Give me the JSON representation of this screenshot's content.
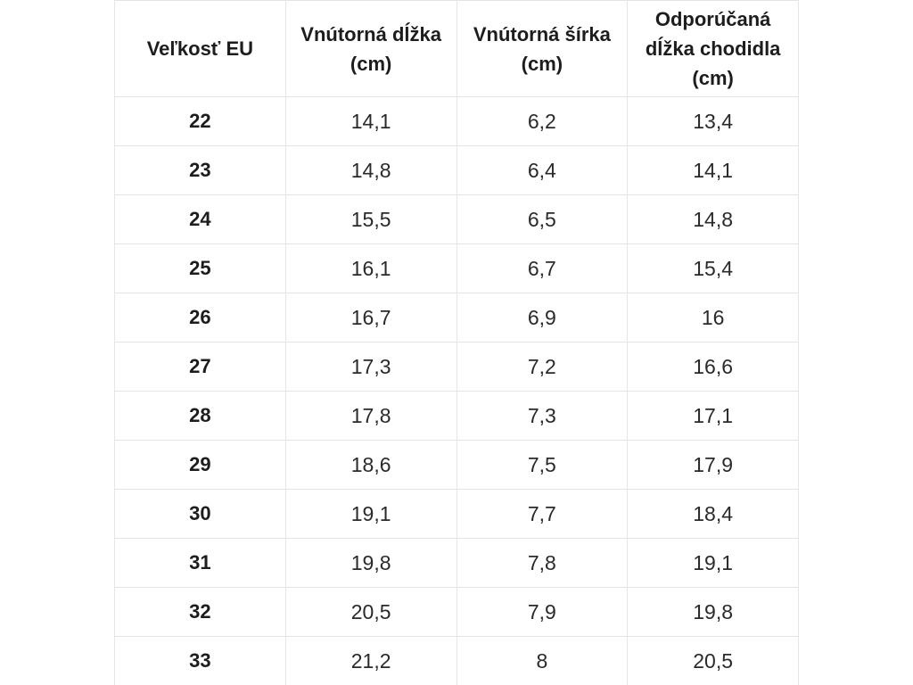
{
  "chart_data": {
    "type": "table",
    "columns": [
      "Veľkosť EU",
      "Vnútorná dĺžka (cm)",
      "Vnútorná šírka (cm)",
      "Odporúčaná dĺžka chodidla (cm)"
    ],
    "rows": [
      [
        "22",
        "14,1",
        "6,2",
        "13,4"
      ],
      [
        "23",
        "14,8",
        "6,4",
        "14,1"
      ],
      [
        "24",
        "15,5",
        "6,5",
        "14,8"
      ],
      [
        "25",
        "16,1",
        "6,7",
        "15,4"
      ],
      [
        "26",
        "16,7",
        "6,9",
        "16"
      ],
      [
        "27",
        "17,3",
        "7,2",
        "16,6"
      ],
      [
        "28",
        "17,8",
        "7,3",
        "17,1"
      ],
      [
        "29",
        "18,6",
        "7,5",
        "17,9"
      ],
      [
        "30",
        "19,1",
        "7,7",
        "18,4"
      ],
      [
        "31",
        "19,8",
        "7,8",
        "19,1"
      ],
      [
        "32",
        "20,5",
        "7,9",
        "19,8"
      ],
      [
        "33",
        "21,2",
        "8",
        "20,5"
      ]
    ],
    "layout": {
      "grid": true,
      "header_rows": 1,
      "column_count": 4,
      "row_count": 12
    }
  },
  "colors": {
    "border": "#e4e4e4",
    "text": "#1d1d1d",
    "data_text": "#2a2a2a",
    "background": "#ffffff"
  }
}
